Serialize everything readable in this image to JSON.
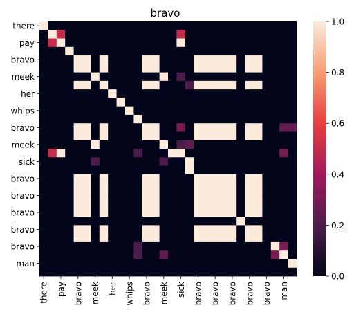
{
  "chart_data": {
    "type": "heatmap",
    "title": "bravo",
    "xlabel": "",
    "ylabel": "",
    "x_tick_labels": [
      "there",
      "",
      "pay",
      "",
      "bravo",
      "",
      "meek",
      "",
      "her",
      "",
      "whips",
      "",
      "bravo",
      "",
      "meek",
      "",
      "sick",
      "",
      "bravo",
      "",
      "bravo",
      "",
      "bravo",
      "",
      "bravo",
      "",
      "bravo",
      "",
      "man",
      ""
    ],
    "y_tick_labels": [
      "there",
      "",
      "pay",
      "",
      "bravo",
      "",
      "meek",
      "",
      "her",
      "",
      "whips",
      "",
      "bravo",
      "",
      "meek",
      "",
      "sick",
      "",
      "bravo",
      "",
      "bravo",
      "",
      "bravo",
      "",
      "bravo",
      "",
      "bravo",
      "",
      "man",
      ""
    ],
    "matrix": [
      [
        1,
        0,
        0,
        0,
        0,
        0,
        0,
        0,
        0,
        0,
        0,
        0,
        0,
        0,
        0,
        0,
        0,
        0,
        0,
        0,
        0,
        0,
        0,
        0,
        0,
        0,
        0,
        0,
        0,
        0
      ],
      [
        0,
        1,
        0.5,
        0,
        0,
        0,
        0,
        0,
        0,
        0,
        0,
        0,
        0,
        0,
        0,
        0,
        0,
        0,
        0,
        0,
        0,
        0,
        0,
        0,
        0,
        0,
        0,
        0,
        0,
        0
      ],
      [
        0,
        0.5,
        1,
        0,
        0,
        0,
        0,
        0,
        0,
        0,
        0,
        0,
        0,
        0,
        0,
        0,
        0,
        0,
        0,
        0,
        0,
        0,
        0,
        0,
        0,
        0,
        0,
        0,
        0,
        0
      ],
      [
        0,
        0,
        0,
        1,
        0,
        0,
        0,
        0,
        0,
        0,
        0,
        0,
        0,
        0,
        0,
        0,
        0,
        0,
        0,
        0,
        0,
        0,
        0,
        0,
        0,
        0,
        0,
        0,
        0,
        0
      ],
      [
        0,
        0,
        0,
        0,
        1,
        1,
        0,
        1,
        0,
        0,
        0,
        0,
        1,
        1,
        0,
        0,
        0,
        0,
        1,
        1,
        1,
        1,
        1,
        0,
        1,
        1,
        0,
        0,
        0,
        0
      ],
      [
        0,
        0,
        0,
        0,
        1,
        1,
        0,
        1,
        0,
        0,
        0,
        0,
        1,
        1,
        0,
        0,
        0,
        0,
        1,
        1,
        1,
        1,
        1,
        0,
        1,
        1,
        0,
        0,
        0,
        0
      ],
      [
        0,
        0,
        0,
        0,
        0,
        0,
        1,
        0,
        0,
        0,
        0,
        0,
        0,
        0,
        1,
        0,
        0.2,
        0,
        0,
        0,
        0,
        0,
        0,
        0,
        0,
        0,
        0,
        0,
        0,
        0
      ],
      [
        0,
        0,
        0,
        0,
        1,
        1,
        0,
        1,
        0,
        0,
        0,
        0,
        1,
        1,
        0,
        0,
        0,
        0,
        1,
        1,
        1,
        1,
        1,
        0,
        1,
        1,
        0,
        0,
        0,
        0
      ],
      [
        0,
        0,
        0,
        0,
        0,
        0,
        0,
        0,
        1,
        0,
        0,
        0,
        0,
        0,
        0,
        0,
        0,
        0,
        0,
        0,
        0,
        0,
        0,
        0,
        0,
        0,
        0,
        0,
        0,
        0
      ],
      [
        0,
        0,
        0,
        0,
        0,
        0,
        0,
        0,
        0,
        1,
        0,
        0,
        0,
        0,
        0,
        0,
        0,
        0,
        0,
        0,
        0,
        0,
        0,
        0,
        0,
        0,
        0,
        0,
        0,
        0
      ],
      [
        0,
        0,
        0,
        0,
        0,
        0,
        0,
        0,
        0,
        0,
        1,
        0,
        0,
        0,
        0,
        0,
        0,
        0,
        0,
        0,
        0,
        0,
        0,
        0,
        0,
        0,
        0,
        0,
        0,
        0
      ],
      [
        0,
        0,
        0,
        0,
        0,
        0,
        0,
        0,
        0,
        0,
        0,
        1,
        0,
        0,
        0,
        0,
        0,
        0,
        0,
        0,
        0,
        0,
        0,
        0,
        0,
        0,
        0,
        0,
        0,
        0
      ],
      [
        0,
        0,
        0,
        0,
        1,
        1,
        0,
        1,
        0,
        0,
        0,
        0,
        1,
        1,
        0,
        0,
        0,
        0,
        1,
        1,
        1,
        1,
        1,
        0,
        1,
        1,
        0,
        0,
        0,
        0
      ],
      [
        0,
        0,
        0,
        0,
        1,
        1,
        0,
        1,
        0,
        0,
        0,
        0,
        1,
        1,
        0,
        0,
        0,
        0,
        1,
        1,
        1,
        1,
        1,
        0,
        1,
        1,
        0,
        0,
        0,
        0
      ],
      [
        0,
        0,
        0,
        0,
        0,
        0,
        1,
        0,
        0,
        0,
        0,
        0,
        0,
        0,
        1,
        0,
        0.2,
        0,
        0,
        0,
        0,
        0,
        0,
        0,
        0,
        0,
        0,
        0,
        0,
        0
      ],
      [
        0,
        0,
        0,
        0,
        0,
        0,
        0,
        0,
        0,
        0,
        0,
        0,
        0,
        0,
        0,
        1,
        0,
        0,
        0,
        0,
        0,
        0,
        0,
        0,
        0,
        0,
        0,
        0,
        0,
        0
      ],
      [
        0,
        0,
        0,
        0,
        0,
        0,
        0.2,
        0,
        0,
        0,
        0,
        0,
        0,
        0,
        0.2,
        0,
        1,
        0,
        0,
        0,
        0,
        0,
        0,
        0,
        0,
        0,
        0,
        0,
        0,
        0
      ],
      [
        0,
        0,
        0,
        0,
        0,
        0,
        0,
        0,
        0,
        0,
        0,
        0,
        0,
        0,
        0,
        0,
        0,
        1,
        0,
        0,
        0,
        0,
        0,
        0,
        0,
        0,
        0,
        0,
        0,
        0
      ],
      [
        0,
        0,
        0,
        0,
        1,
        1,
        0,
        1,
        0,
        0,
        0,
        0,
        1,
        1,
        0,
        0,
        0,
        0,
        1,
        1,
        1,
        1,
        1,
        0,
        1,
        1,
        0,
        0,
        0,
        0
      ],
      [
        0,
        0,
        0,
        0,
        1,
        1,
        0,
        1,
        0,
        0,
        0,
        0,
        1,
        1,
        0,
        0,
        0,
        0,
        1,
        1,
        1,
        1,
        1,
        0,
        1,
        1,
        0,
        0,
        0,
        0
      ],
      [
        0,
        0,
        0,
        0,
        1,
        1,
        0,
        1,
        0,
        0,
        0,
        0,
        1,
        1,
        0,
        0,
        0,
        0,
        1,
        1,
        1,
        1,
        1,
        0,
        1,
        1,
        0,
        0,
        0,
        0
      ],
      [
        0,
        0,
        0,
        0,
        1,
        1,
        0,
        1,
        0,
        0,
        0,
        0,
        1,
        1,
        0,
        0,
        0,
        0,
        1,
        1,
        1,
        1,
        1,
        0,
        1,
        1,
        0,
        0,
        0,
        0
      ],
      [
        0,
        0,
        0,
        0,
        1,
        1,
        0,
        1,
        0,
        0,
        0,
        0,
        1,
        1,
        0,
        0,
        0,
        0,
        1,
        1,
        1,
        1,
        1,
        0,
        1,
        1,
        0,
        0,
        0,
        0
      ],
      [
        0,
        0,
        0,
        0,
        0,
        0,
        0,
        0,
        0,
        0,
        0,
        0,
        0,
        0,
        0,
        0,
        0,
        0,
        0,
        0,
        0,
        0,
        0,
        1,
        0,
        0,
        0,
        0,
        0,
        0
      ],
      [
        0,
        0,
        0,
        0,
        1,
        1,
        0,
        1,
        0,
        0,
        0,
        0,
        1,
        1,
        0,
        0,
        0,
        0,
        1,
        1,
        1,
        1,
        1,
        0,
        1,
        1,
        0,
        0,
        0,
        0
      ],
      [
        0,
        0,
        0,
        0,
        1,
        1,
        0,
        1,
        0,
        0,
        0,
        0,
        1,
        1,
        0,
        0,
        0,
        0,
        1,
        1,
        1,
        1,
        1,
        0,
        1,
        1,
        0,
        0,
        0,
        0
      ],
      [
        0,
        0,
        0,
        0,
        0,
        0,
        0,
        0,
        0,
        0,
        0,
        0,
        0,
        0,
        0,
        0,
        0,
        0,
        0,
        0,
        0,
        0,
        0,
        0,
        0,
        0,
        0,
        0,
        0,
        0
      ],
      [
        0,
        0,
        0,
        0,
        0,
        0,
        0,
        0,
        0,
        0,
        0,
        0,
        0,
        0,
        0,
        0,
        0,
        0,
        0,
        0,
        0,
        0,
        0,
        0,
        0,
        0,
        0,
        0,
        0,
        0
      ],
      [
        0,
        0,
        0,
        0,
        0,
        0,
        0,
        0,
        0,
        0,
        0,
        0,
        0,
        0,
        0,
        0,
        0,
        0,
        0,
        0,
        0,
        0,
        0,
        0,
        0,
        0,
        0,
        0,
        0,
        0
      ],
      [
        0,
        0,
        0,
        0,
        0,
        0,
        0,
        0,
        0,
        0,
        0,
        0,
        0,
        0,
        0,
        0,
        0,
        0,
        0,
        0,
        0,
        0,
        0,
        0,
        0,
        0,
        0,
        0,
        0,
        0
      ]
    ],
    "overrides": [
      {
        "row": 1,
        "col": 2,
        "value": 0.5
      },
      {
        "row": 1,
        "col": 16,
        "value": 0.5
      },
      {
        "row": 2,
        "col": 16,
        "value": 1
      },
      {
        "row": 7,
        "col": 17,
        "value": 0.2
      },
      {
        "row": 12,
        "col": 16,
        "value": 0.3
      },
      {
        "row": 12,
        "col": 28,
        "value": 0.25
      },
      {
        "row": 12,
        "col": 29,
        "value": 0.25
      },
      {
        "row": 14,
        "col": 17,
        "value": 0.25
      },
      {
        "row": 15,
        "col": 1,
        "value": 0.5
      },
      {
        "row": 15,
        "col": 2,
        "value": 1
      },
      {
        "row": 15,
        "col": 28,
        "value": 0.3
      },
      {
        "row": 15,
        "col": 11,
        "value": 0.2
      },
      {
        "row": 16,
        "col": 6,
        "value": 0.2
      },
      {
        "row": 16,
        "col": 14,
        "value": 0.2
      },
      {
        "row": 26,
        "col": 11,
        "value": 0.2
      },
      {
        "row": 27,
        "col": 11,
        "value": 0.2
      },
      {
        "row": 27,
        "col": 14,
        "value": 0.25
      },
      {
        "row": 26,
        "col": 27,
        "value": 1
      },
      {
        "row": 26,
        "col": 28,
        "value": 0.3
      },
      {
        "row": 27,
        "col": 27,
        "value": 0.3
      },
      {
        "row": 27,
        "col": 28,
        "value": 1
      },
      {
        "row": 28,
        "col": 29,
        "value": 1
      },
      {
        "row": 16,
        "col": 16,
        "value": 0
      },
      {
        "row": 15,
        "col": 16,
        "value": 1
      },
      {
        "row": 16,
        "col": 17,
        "value": 1
      }
    ],
    "colorbar": {
      "ticks": [
        "0.0",
        "0.2",
        "0.4",
        "0.6",
        "0.8",
        "1.0"
      ],
      "range": [
        0,
        1
      ],
      "colors": [
        "#03051a",
        "#4c1d4b",
        "#a11a5b",
        "#e83f3f",
        "#f69c73",
        "#faebdd"
      ]
    }
  }
}
